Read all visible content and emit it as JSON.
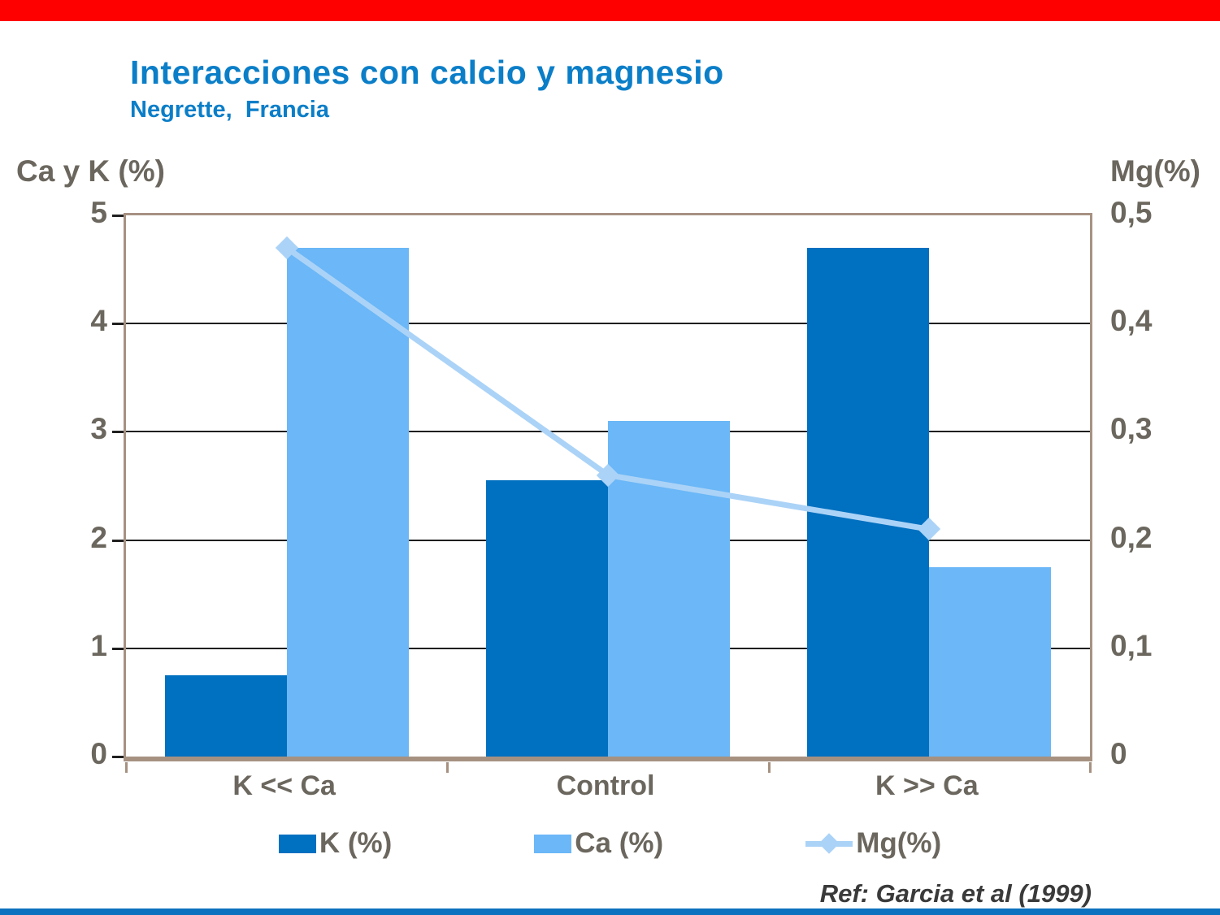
{
  "colors": {
    "top_bar": "#FF0000",
    "bottom_bar": "#0C71BE",
    "title": "#0B7EC8",
    "text_gray": "#6B675E",
    "plot_border": "#A69181",
    "grid": "#1F1F1F"
  },
  "header": {
    "title": "Interacciones con calcio y magnesio",
    "subtitle": "Negrette,  Francia"
  },
  "chart_data": {
    "type": "bar",
    "categories": [
      "K << Ca",
      "Control",
      "K >> Ca"
    ],
    "series": [
      {
        "name": "K (%)",
        "type": "bar",
        "axis": "left",
        "color": "#0070C0",
        "values": [
          0.75,
          2.55,
          4.7
        ]
      },
      {
        "name": "Ca (%)",
        "type": "bar",
        "axis": "left",
        "color": "#6BB7F7",
        "values": [
          4.7,
          3.1,
          1.75
        ]
      },
      {
        "name": "Mg(%)",
        "type": "line",
        "axis": "right",
        "color": "#ABD3F7",
        "values": [
          0.47,
          0.26,
          0.21
        ]
      }
    ],
    "left_axis": {
      "label": "Ca y K (%)",
      "min": 0,
      "max": 5,
      "ticks": [
        "5",
        "4",
        "3",
        "2",
        "1",
        "0"
      ]
    },
    "right_axis": {
      "label": "Mg(%)",
      "min": 0,
      "max": 0.5,
      "ticks": [
        "0,5",
        "0,4",
        "0,3",
        "0,2",
        "0,1",
        "0"
      ]
    },
    "grid": true,
    "legend_position": "bottom"
  },
  "footer": {
    "ref": "Ref: Garcia et al (1999)"
  }
}
